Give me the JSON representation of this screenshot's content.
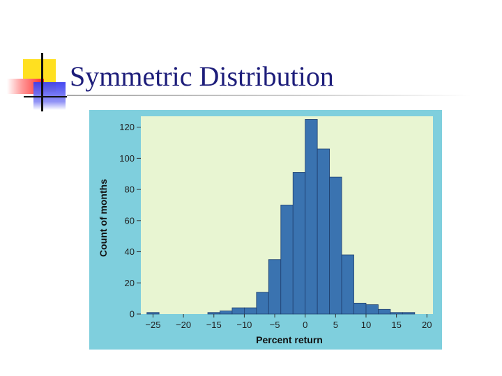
{
  "slide": {
    "title": "Symmetric Distribution"
  },
  "colors": {
    "title": "#1d1d7a",
    "panel_background": "#7fcfdd",
    "plot_background": "#e8f5d2",
    "bar_fill": "#3a73b0",
    "bar_edge": "#1f3f6e"
  },
  "chart_data": {
    "type": "bar",
    "xlabel": "Percent return",
    "ylabel": "Count of months",
    "xlim": [
      -27,
      21
    ],
    "ylim": [
      0,
      127
    ],
    "xticks": [
      "−25",
      "−20",
      "−15",
      "−10",
      "−5",
      "0",
      "5",
      "10",
      "15",
      "20"
    ],
    "xtick_values": [
      -25,
      -20,
      -15,
      -10,
      -5,
      0,
      5,
      10,
      15,
      20
    ],
    "yticks": [
      "0",
      "20",
      "40",
      "60",
      "80",
      "100",
      "120"
    ],
    "ytick_values": [
      0,
      20,
      40,
      60,
      80,
      100,
      120
    ],
    "bin_width": 2,
    "bins": [
      {
        "start": -26,
        "end": -24,
        "count": 1
      },
      {
        "start": -24,
        "end": -22,
        "count": 0
      },
      {
        "start": -22,
        "end": -20,
        "count": 0
      },
      {
        "start": -20,
        "end": -18,
        "count": 0
      },
      {
        "start": -18,
        "end": -16,
        "count": 0
      },
      {
        "start": -16,
        "end": -14,
        "count": 1
      },
      {
        "start": -14,
        "end": -12,
        "count": 2
      },
      {
        "start": -12,
        "end": -10,
        "count": 4
      },
      {
        "start": -10,
        "end": -8,
        "count": 4
      },
      {
        "start": -8,
        "end": -6,
        "count": 14
      },
      {
        "start": -6,
        "end": -4,
        "count": 35
      },
      {
        "start": -4,
        "end": -2,
        "count": 70
      },
      {
        "start": -2,
        "end": 0,
        "count": 91
      },
      {
        "start": 0,
        "end": 2,
        "count": 125
      },
      {
        "start": 2,
        "end": 4,
        "count": 106
      },
      {
        "start": 4,
        "end": 6,
        "count": 88
      },
      {
        "start": 6,
        "end": 8,
        "count": 38
      },
      {
        "start": 8,
        "end": 10,
        "count": 7
      },
      {
        "start": 10,
        "end": 12,
        "count": 6
      },
      {
        "start": 12,
        "end": 14,
        "count": 3
      },
      {
        "start": 14,
        "end": 16,
        "count": 1
      },
      {
        "start": 16,
        "end": 18,
        "count": 1
      }
    ],
    "grid": false,
    "legend": "none"
  }
}
